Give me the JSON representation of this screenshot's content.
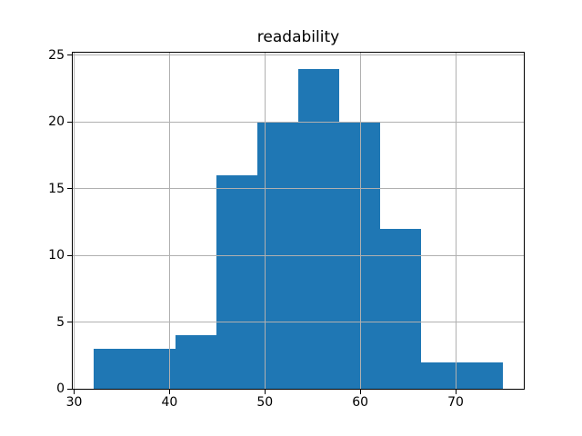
{
  "chart_data": {
    "type": "bar",
    "subtype": "histogram",
    "title": "readability",
    "xlabel": "",
    "ylabel": "",
    "bin_edges": [
      32,
      36.3,
      40.6,
      44.9,
      49.2,
      53.5,
      57.8,
      62.1,
      66.4,
      70.7,
      75
    ],
    "counts": [
      3,
      3,
      4,
      16,
      20,
      24,
      20,
      12,
      2,
      2
    ],
    "x_ticks": [
      30,
      40,
      50,
      60,
      70
    ],
    "y_ticks": [
      0,
      5,
      10,
      15,
      20,
      25
    ],
    "xlim": [
      29.85,
      77.15
    ],
    "ylim": [
      0,
      25.2
    ],
    "grid": true,
    "grid_above_bars": true,
    "legend_position": "none",
    "colors": {
      "bar": "#1f77b4",
      "grid": "#b0b0b0",
      "spine": "#000000",
      "text": "#000000",
      "background": "#ffffff"
    }
  }
}
